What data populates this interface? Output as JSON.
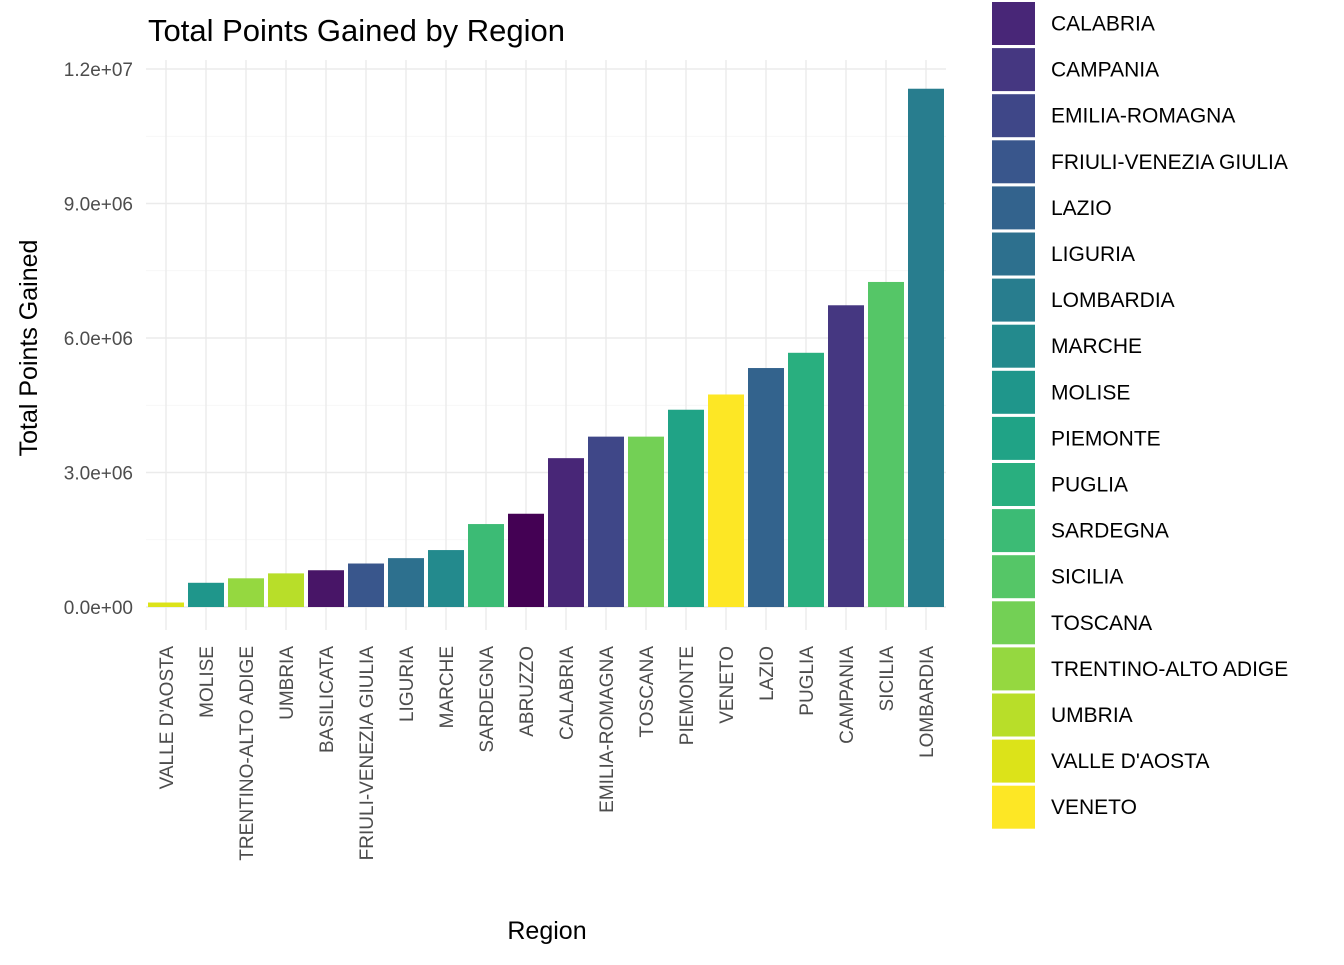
{
  "chart_data": {
    "type": "bar",
    "title": "Total Points Gained by Region",
    "xlabel": "Region",
    "ylabel": "Total Points Gained",
    "ylim": [
      0,
      12000000
    ],
    "yticks": [
      {
        "value": 0,
        "label": "0.0e+00"
      },
      {
        "value": 3000000,
        "label": "3.0e+06"
      },
      {
        "value": 6000000,
        "label": "6.0e+06"
      },
      {
        "value": 9000000,
        "label": "9.0e+06"
      },
      {
        "value": 12000000,
        "label": "1.2e+07"
      }
    ],
    "grid": true,
    "legend_position": "right",
    "categories": [
      "VALLE D'AOSTA",
      "MOLISE",
      "TRENTINO-ALTO ADIGE",
      "UMBRIA",
      "BASILICATA",
      "FRIULI-VENEZIA GIULIA",
      "LIGURIA",
      "MARCHE",
      "SARDEGNA",
      "ABRUZZO",
      "CALABRIA",
      "EMILIA-ROMAGNA",
      "TOSCANA",
      "PIEMONTE",
      "VENETO",
      "LAZIO",
      "PUGLIA",
      "CAMPANIA",
      "SICILIA",
      "LOMBARDIA"
    ],
    "values": [
      100000,
      540000,
      640000,
      750000,
      820000,
      970000,
      1090000,
      1270000,
      1850000,
      2080000,
      3320000,
      3800000,
      3800000,
      4400000,
      4740000,
      5330000,
      5670000,
      6730000,
      7250000,
      11560000
    ],
    "bar_colors": [
      "#DCE319",
      "#1F968B",
      "#95D840",
      "#B8DE29",
      "#481567",
      "#39568C",
      "#2D708E",
      "#238A8D",
      "#3CBB75",
      "#440154",
      "#482677",
      "#3F4788",
      "#73D055",
      "#20A386",
      "#FDE725",
      "#33638D",
      "#29AF7F",
      "#453781",
      "#55C667",
      "#287D8E"
    ],
    "legend": [
      {
        "label": "CALABRIA",
        "color": "#482677"
      },
      {
        "label": "CAMPANIA",
        "color": "#453781"
      },
      {
        "label": "EMILIA-ROMAGNA",
        "color": "#3F4788"
      },
      {
        "label": "FRIULI-VENEZIA GIULIA",
        "color": "#39568C"
      },
      {
        "label": "LAZIO",
        "color": "#33638D"
      },
      {
        "label": "LIGURIA",
        "color": "#2D708E"
      },
      {
        "label": "LOMBARDIA",
        "color": "#287D8E"
      },
      {
        "label": "MARCHE",
        "color": "#238A8D"
      },
      {
        "label": "MOLISE",
        "color": "#1F968B"
      },
      {
        "label": "PIEMONTE",
        "color": "#20A386"
      },
      {
        "label": "PUGLIA",
        "color": "#29AF7F"
      },
      {
        "label": "SARDEGNA",
        "color": "#3CBB75"
      },
      {
        "label": "SICILIA",
        "color": "#55C667"
      },
      {
        "label": "TOSCANA",
        "color": "#73D055"
      },
      {
        "label": "TRENTINO-ALTO ADIGE",
        "color": "#95D840"
      },
      {
        "label": "UMBRIA",
        "color": "#B8DE29"
      },
      {
        "label": "VALLE D'AOSTA",
        "color": "#DCE319"
      },
      {
        "label": "VENETO",
        "color": "#FDE725"
      }
    ]
  }
}
